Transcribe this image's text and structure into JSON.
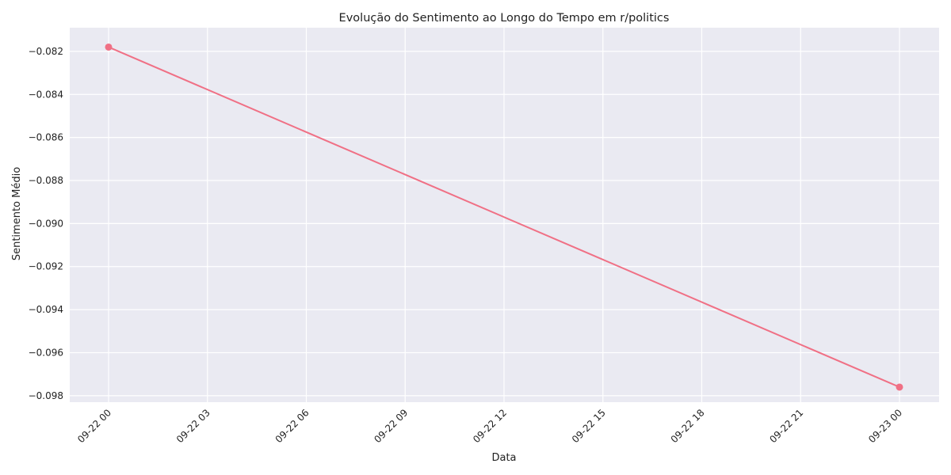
{
  "chart_data": {
    "type": "line",
    "title": "Evolução do Sentimento ao Longo do Tempo em r/politics",
    "xlabel": "Data",
    "ylabel": "Sentimento Médio",
    "x": [
      "09-22 00",
      "09-23 00"
    ],
    "series": [
      {
        "values": [
          -0.0818,
          -0.0976
        ]
      }
    ],
    "x_ticks": [
      "09-22 00",
      "09-22 03",
      "09-22 06",
      "09-22 09",
      "09-22 12",
      "09-22 15",
      "09-22 18",
      "09-22 21",
      "09-23 00"
    ],
    "y_ticks": [
      -0.082,
      -0.084,
      -0.086,
      -0.088,
      -0.09,
      -0.092,
      -0.094,
      -0.096,
      -0.098
    ],
    "y_tick_labels": [
      "−0.082",
      "−0.084",
      "−0.086",
      "−0.088",
      "−0.090",
      "−0.092",
      "−0.094",
      "−0.096",
      "−0.098"
    ],
    "ylim": [
      -0.0983,
      -0.0809
    ],
    "grid": true,
    "colors": {
      "line": "#f07085",
      "plot_bg": "#eaeaf2",
      "grid": "#ffffff"
    }
  }
}
